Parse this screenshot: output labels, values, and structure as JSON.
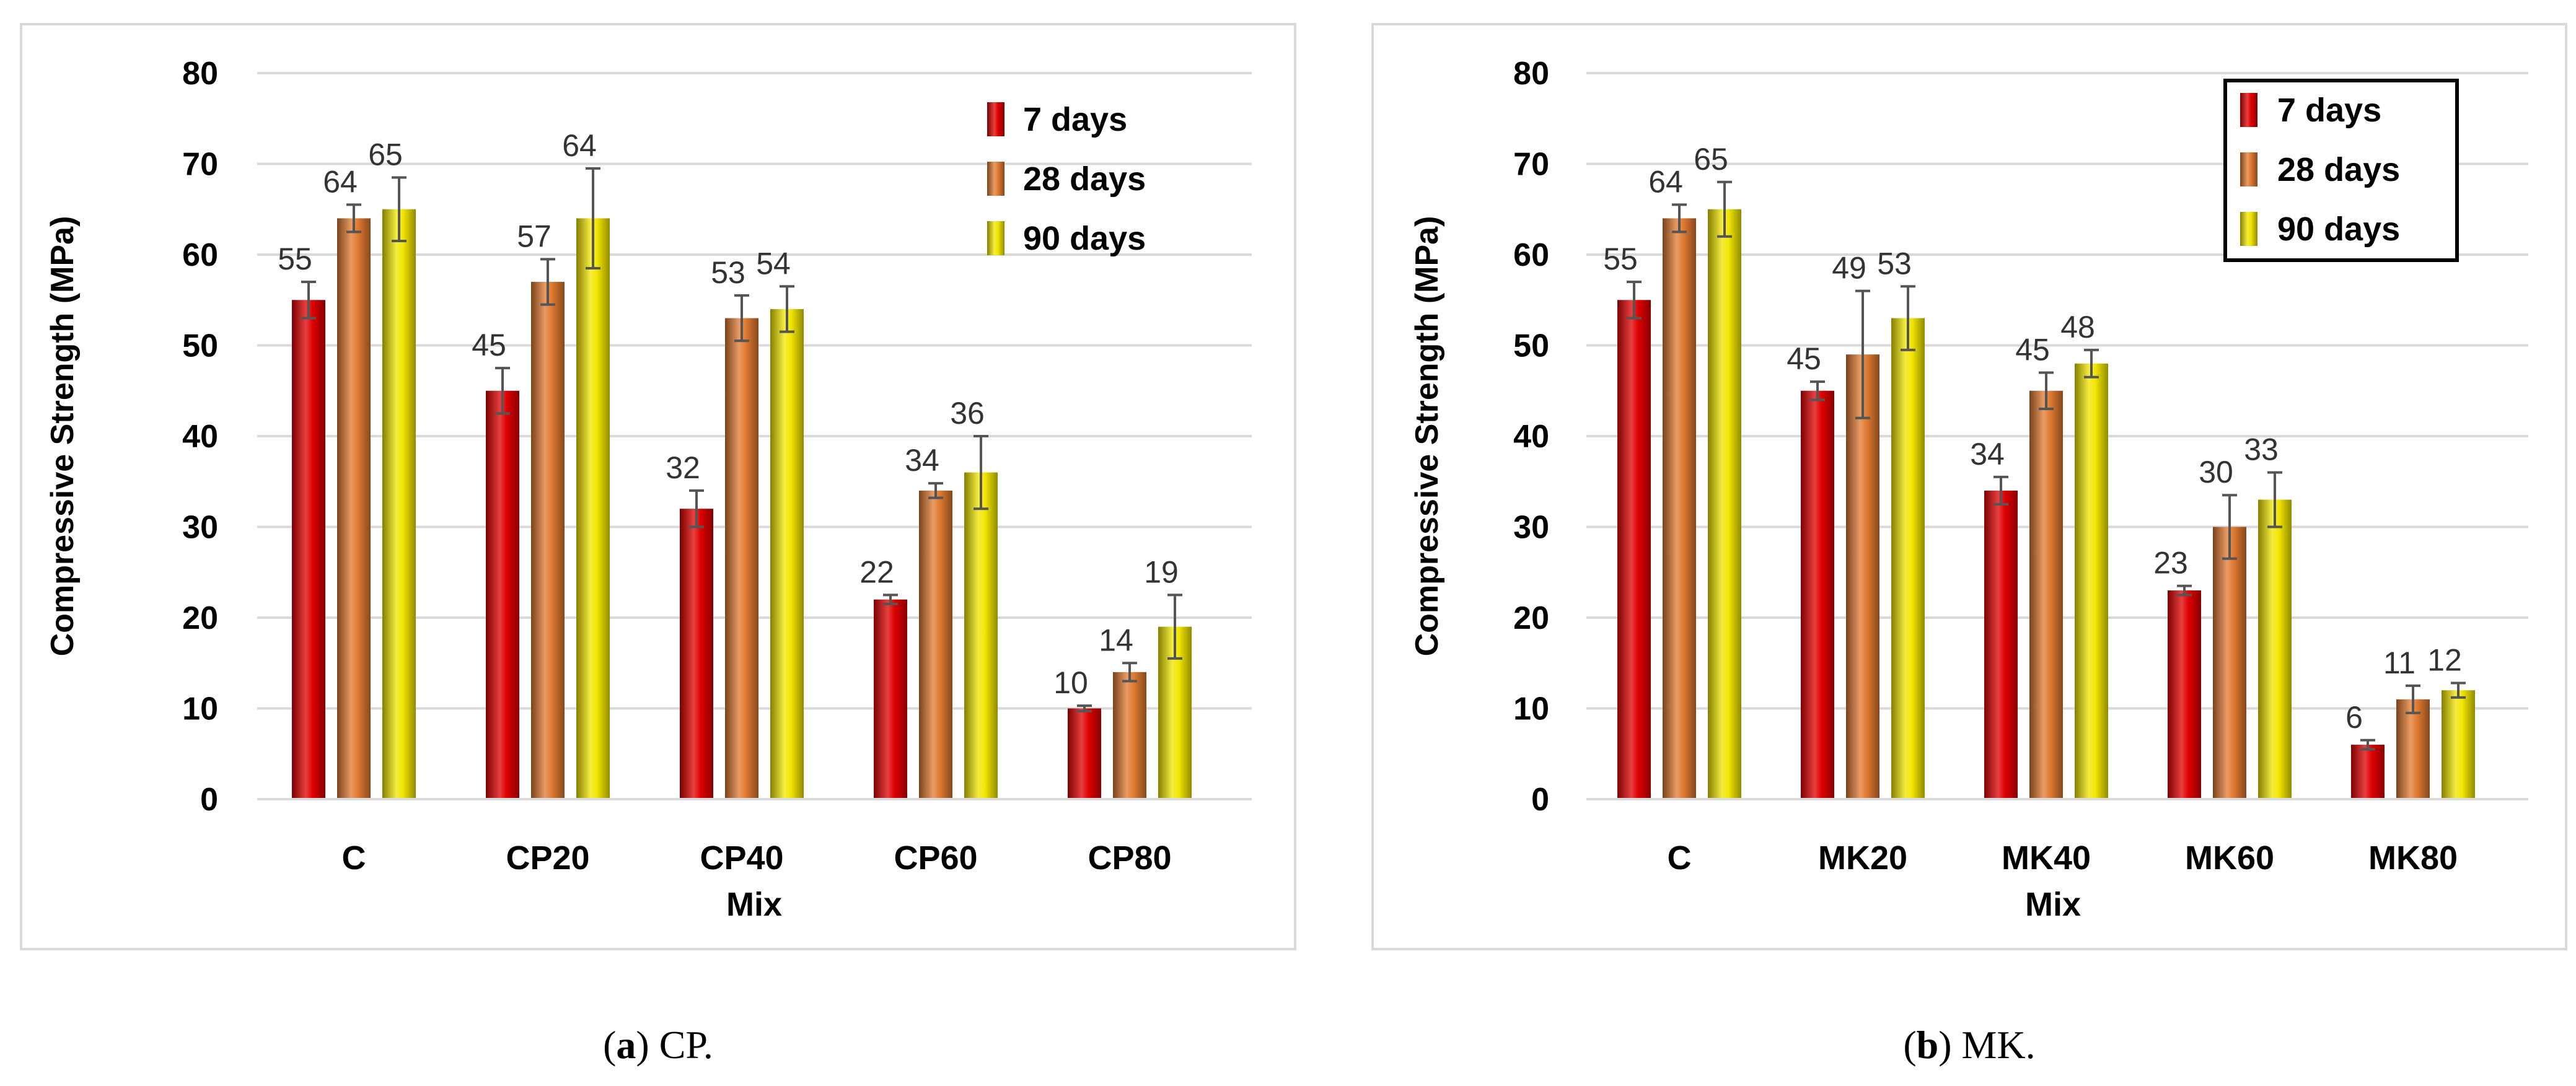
{
  "chart_data": [
    {
      "type": "bar",
      "panel": "a",
      "caption_letter": "a",
      "caption_text": "CP.",
      "xlabel": "Mix",
      "ylabel": "Compressive Strength (MPa)",
      "ylim": [
        0,
        80
      ],
      "yticks": [
        0,
        10,
        20,
        30,
        40,
        50,
        60,
        70,
        80
      ],
      "grid": true,
      "legend_position": "top-right",
      "legend_boxed": false,
      "categories": [
        "C",
        "CP20",
        "CP40",
        "CP60",
        "CP80"
      ],
      "series": [
        {
          "name": "7 days",
          "color": "#e00000",
          "values": [
            55,
            45,
            32,
            22,
            10
          ],
          "labels": [
            "55",
            "45",
            "32",
            "22",
            "10"
          ],
          "errors": [
            2.0,
            2.5,
            2.0,
            0.5,
            0.3
          ]
        },
        {
          "name": "28 days",
          "color": "#e07a30",
          "values": [
            64,
            57,
            53,
            34,
            14
          ],
          "labels": [
            "64",
            "57",
            "53",
            "34",
            "14"
          ],
          "errors": [
            1.5,
            2.5,
            2.5,
            0.8,
            1.0
          ]
        },
        {
          "name": "90 days",
          "color": "#f2e600",
          "values": [
            65,
            64,
            54,
            36,
            19
          ],
          "labels": [
            "65",
            "64",
            "54",
            "36",
            "19"
          ],
          "errors": [
            3.5,
            5.5,
            2.5,
            4.0,
            3.5
          ]
        }
      ]
    },
    {
      "type": "bar",
      "panel": "b",
      "caption_letter": "b",
      "caption_text": "MK.",
      "xlabel": "Mix",
      "ylabel": "Compressive Strength (MPa)",
      "ylim": [
        0,
        80
      ],
      "yticks": [
        0,
        10,
        20,
        30,
        40,
        50,
        60,
        70,
        80
      ],
      "grid": true,
      "legend_position": "top-right",
      "legend_boxed": true,
      "categories": [
        "C",
        "MK20",
        "MK40",
        "MK60",
        "MK80"
      ],
      "series": [
        {
          "name": "7 days",
          "color": "#e00000",
          "values": [
            55,
            45,
            34,
            23,
            6
          ],
          "labels": [
            "55",
            "45",
            "34",
            "23",
            "6"
          ],
          "errors": [
            2.0,
            1.0,
            1.5,
            0.5,
            0.5
          ]
        },
        {
          "name": "28 days",
          "color": "#e07a30",
          "values": [
            64,
            49,
            45,
            30,
            11
          ],
          "labels": [
            "64",
            "49",
            "45",
            "30",
            "11"
          ],
          "errors": [
            1.5,
            7.0,
            2.0,
            3.5,
            1.5
          ]
        },
        {
          "name": "90 days",
          "color": "#f2e600",
          "values": [
            65,
            53,
            48,
            33,
            12
          ],
          "labels": [
            "65",
            "53",
            "48",
            "33",
            "12"
          ],
          "errors": [
            3.0,
            3.5,
            1.5,
            3.0,
            0.8
          ]
        }
      ]
    }
  ]
}
